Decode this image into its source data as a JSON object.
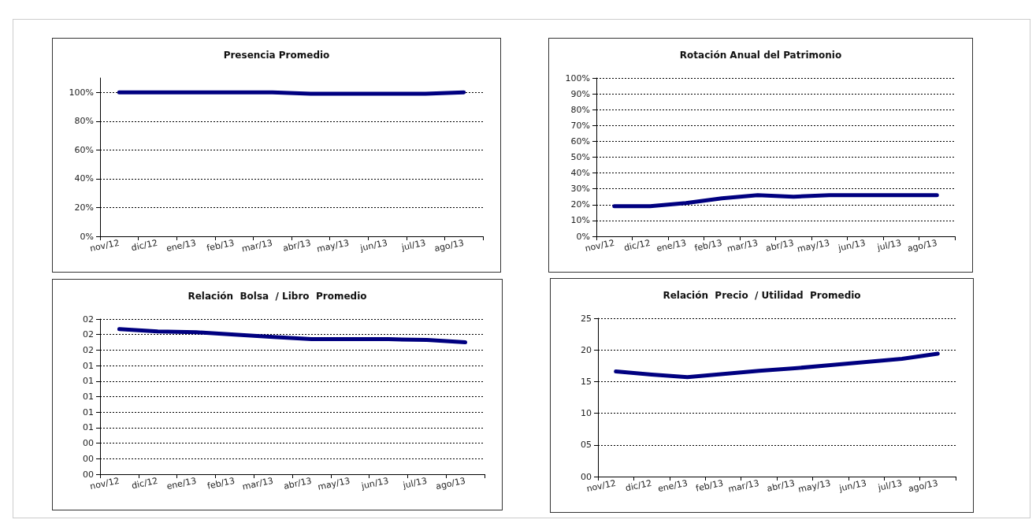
{
  "chart_data": [
    {
      "type": "line",
      "title": "Presencia Promedio",
      "categories": [
        "nov/12",
        "dic/12",
        "ene/13",
        "feb/13",
        "mar/13",
        "abr/13",
        "may/13",
        "jun/13",
        "jul/13",
        "ago/13"
      ],
      "series": [
        {
          "color": "#000080",
          "values": [
            100,
            100,
            100,
            100,
            100,
            99,
            99,
            99,
            99,
            100
          ]
        }
      ],
      "ylim": [
        0,
        110
      ],
      "yticks": [
        {
          "value": 0,
          "label": "0%"
        },
        {
          "value": 20,
          "label": "20%"
        },
        {
          "value": 40,
          "label": "40%"
        },
        {
          "value": 60,
          "label": "60%"
        },
        {
          "value": 80,
          "label": "80%"
        },
        {
          "value": 100,
          "label": "100%"
        }
      ],
      "grid": "y",
      "marker": "none",
      "line_style": "solid"
    },
    {
      "type": "line",
      "title": "Rotación Anual del Patrimonio",
      "categories": [
        "nov/12",
        "dic/12",
        "ene/13",
        "feb/13",
        "mar/13",
        "abr/13",
        "may/13",
        "jun/13",
        "jul/13",
        "ago/13"
      ],
      "series": [
        {
          "color": "#000080",
          "values": [
            19,
            19,
            21,
            24,
            26,
            25,
            26,
            26,
            26,
            26
          ]
        }
      ],
      "ylim": [
        0,
        100
      ],
      "yticks": [
        {
          "value": 0,
          "label": "0%"
        },
        {
          "value": 10,
          "label": "10%"
        },
        {
          "value": 20,
          "label": "20%"
        },
        {
          "value": 30,
          "label": "30%"
        },
        {
          "value": 40,
          "label": "40%"
        },
        {
          "value": 50,
          "label": "50%"
        },
        {
          "value": 60,
          "label": "60%"
        },
        {
          "value": 70,
          "label": "70%"
        },
        {
          "value": 80,
          "label": "80%"
        },
        {
          "value": 90,
          "label": "90%"
        },
        {
          "value": 100,
          "label": "100%"
        }
      ],
      "grid": "y",
      "marker": "none",
      "line_style": "solid"
    },
    {
      "type": "line",
      "title": "Relación  Bolsa  / Libro  Promedio",
      "categories": [
        "nov/12",
        "dic/12",
        "ene/13",
        "feb/13",
        "mar/13",
        "abr/13",
        "may/13",
        "jun/13",
        "jul/13",
        "ago/13"
      ],
      "series": [
        {
          "color": "#000080",
          "values": [
            1.87,
            1.84,
            1.83,
            1.8,
            1.77,
            1.74,
            1.74,
            1.74,
            1.73,
            1.7
          ]
        }
      ],
      "ylim": [
        0,
        2
      ],
      "yticks": [
        {
          "value": 0,
          "label": "00"
        },
        {
          "value": 0.2,
          "label": "00"
        },
        {
          "value": 0.4,
          "label": "00"
        },
        {
          "value": 0.6,
          "label": "01"
        },
        {
          "value": 0.8,
          "label": "01"
        },
        {
          "value": 1,
          "label": "01"
        },
        {
          "value": 1.2,
          "label": "01"
        },
        {
          "value": 1.4,
          "label": "01"
        },
        {
          "value": 1.6,
          "label": "02"
        },
        {
          "value": 1.8,
          "label": "02"
        },
        {
          "value": 2,
          "label": "02"
        }
      ],
      "grid": "y",
      "marker": "none",
      "line_style": "solid"
    },
    {
      "type": "line",
      "title": "Relación  Precio  / Utilidad  Promedio",
      "categories": [
        "nov/12",
        "dic/12",
        "ene/13",
        "feb/13",
        "mar/13",
        "abr/13",
        "may/13",
        "jun/13",
        "jul/13",
        "ago/13"
      ],
      "series": [
        {
          "color": "#000080",
          "values": [
            16.6,
            16.1,
            15.7,
            16.2,
            16.7,
            17.1,
            17.6,
            18.1,
            18.6,
            19.4
          ]
        }
      ],
      "ylim": [
        0,
        25
      ],
      "yticks": [
        {
          "value": 0,
          "label": "00"
        },
        {
          "value": 5,
          "label": "05"
        },
        {
          "value": 10,
          "label": "10"
        },
        {
          "value": 15,
          "label": "15"
        },
        {
          "value": 20,
          "label": "20"
        },
        {
          "value": 25,
          "label": "25"
        }
      ],
      "grid": "y",
      "marker": "none",
      "line_style": "solid"
    }
  ]
}
